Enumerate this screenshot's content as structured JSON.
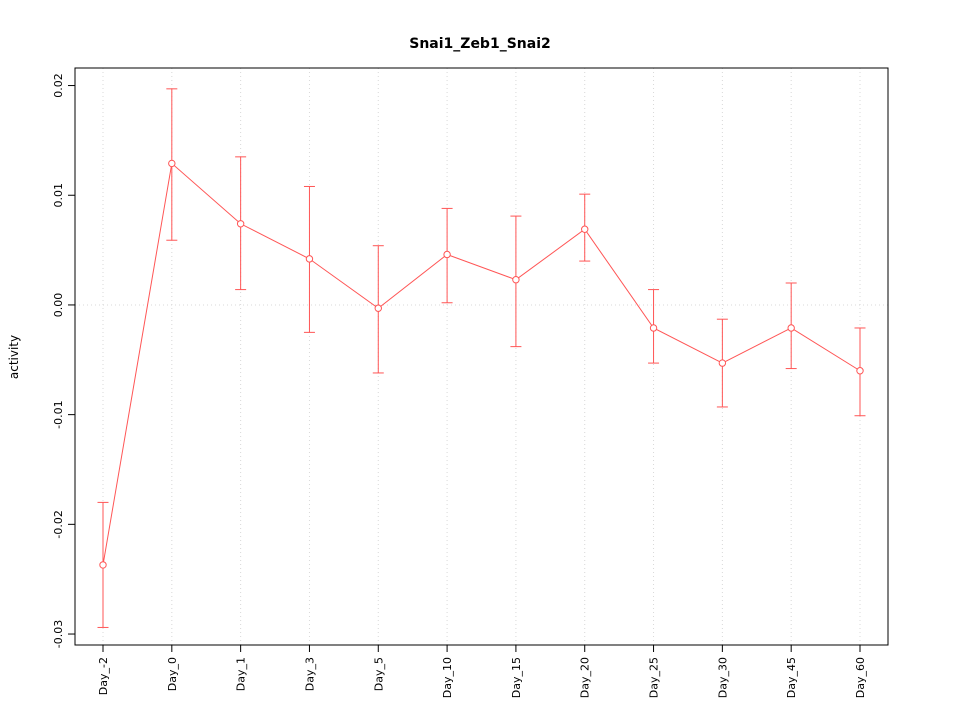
{
  "chart_data": {
    "type": "line",
    "title": "Snai1_Zeb1_Snai2",
    "ylabel": "activity",
    "xlabel": "",
    "legend": "none",
    "grid": "dotted-vertical-plus-zero-line",
    "categories": [
      "Day_-2",
      "Day_0",
      "Day_1",
      "Day_3",
      "Day_5",
      "Day_10",
      "Day_15",
      "Day_20",
      "Day_25",
      "Day_30",
      "Day_45",
      "Day_60"
    ],
    "values": [
      -0.0237,
      0.0129,
      0.0074,
      0.0042,
      -0.0003,
      0.0046,
      0.0023,
      0.0069,
      -0.0021,
      -0.0053,
      -0.0021,
      -0.006
    ],
    "error_low": [
      -0.0294,
      0.0059,
      0.0014,
      -0.0025,
      -0.0062,
      0.0002,
      -0.0038,
      0.004,
      -0.0053,
      -0.0093,
      -0.0058,
      -0.0101
    ],
    "error_high": [
      -0.018,
      0.0197,
      0.0135,
      0.0108,
      0.0054,
      0.0088,
      0.0081,
      0.0101,
      0.0014,
      -0.0013,
      0.002,
      -0.0021
    ],
    "yticks": [
      -0.03,
      -0.02,
      -0.01,
      0.0,
      0.01,
      0.02
    ],
    "ylim": [
      -0.031,
      0.0216
    ],
    "colors": {
      "line": "#ff5555",
      "grid": "#d8d8d8",
      "axis": "#000000",
      "background": "#ffffff"
    }
  }
}
